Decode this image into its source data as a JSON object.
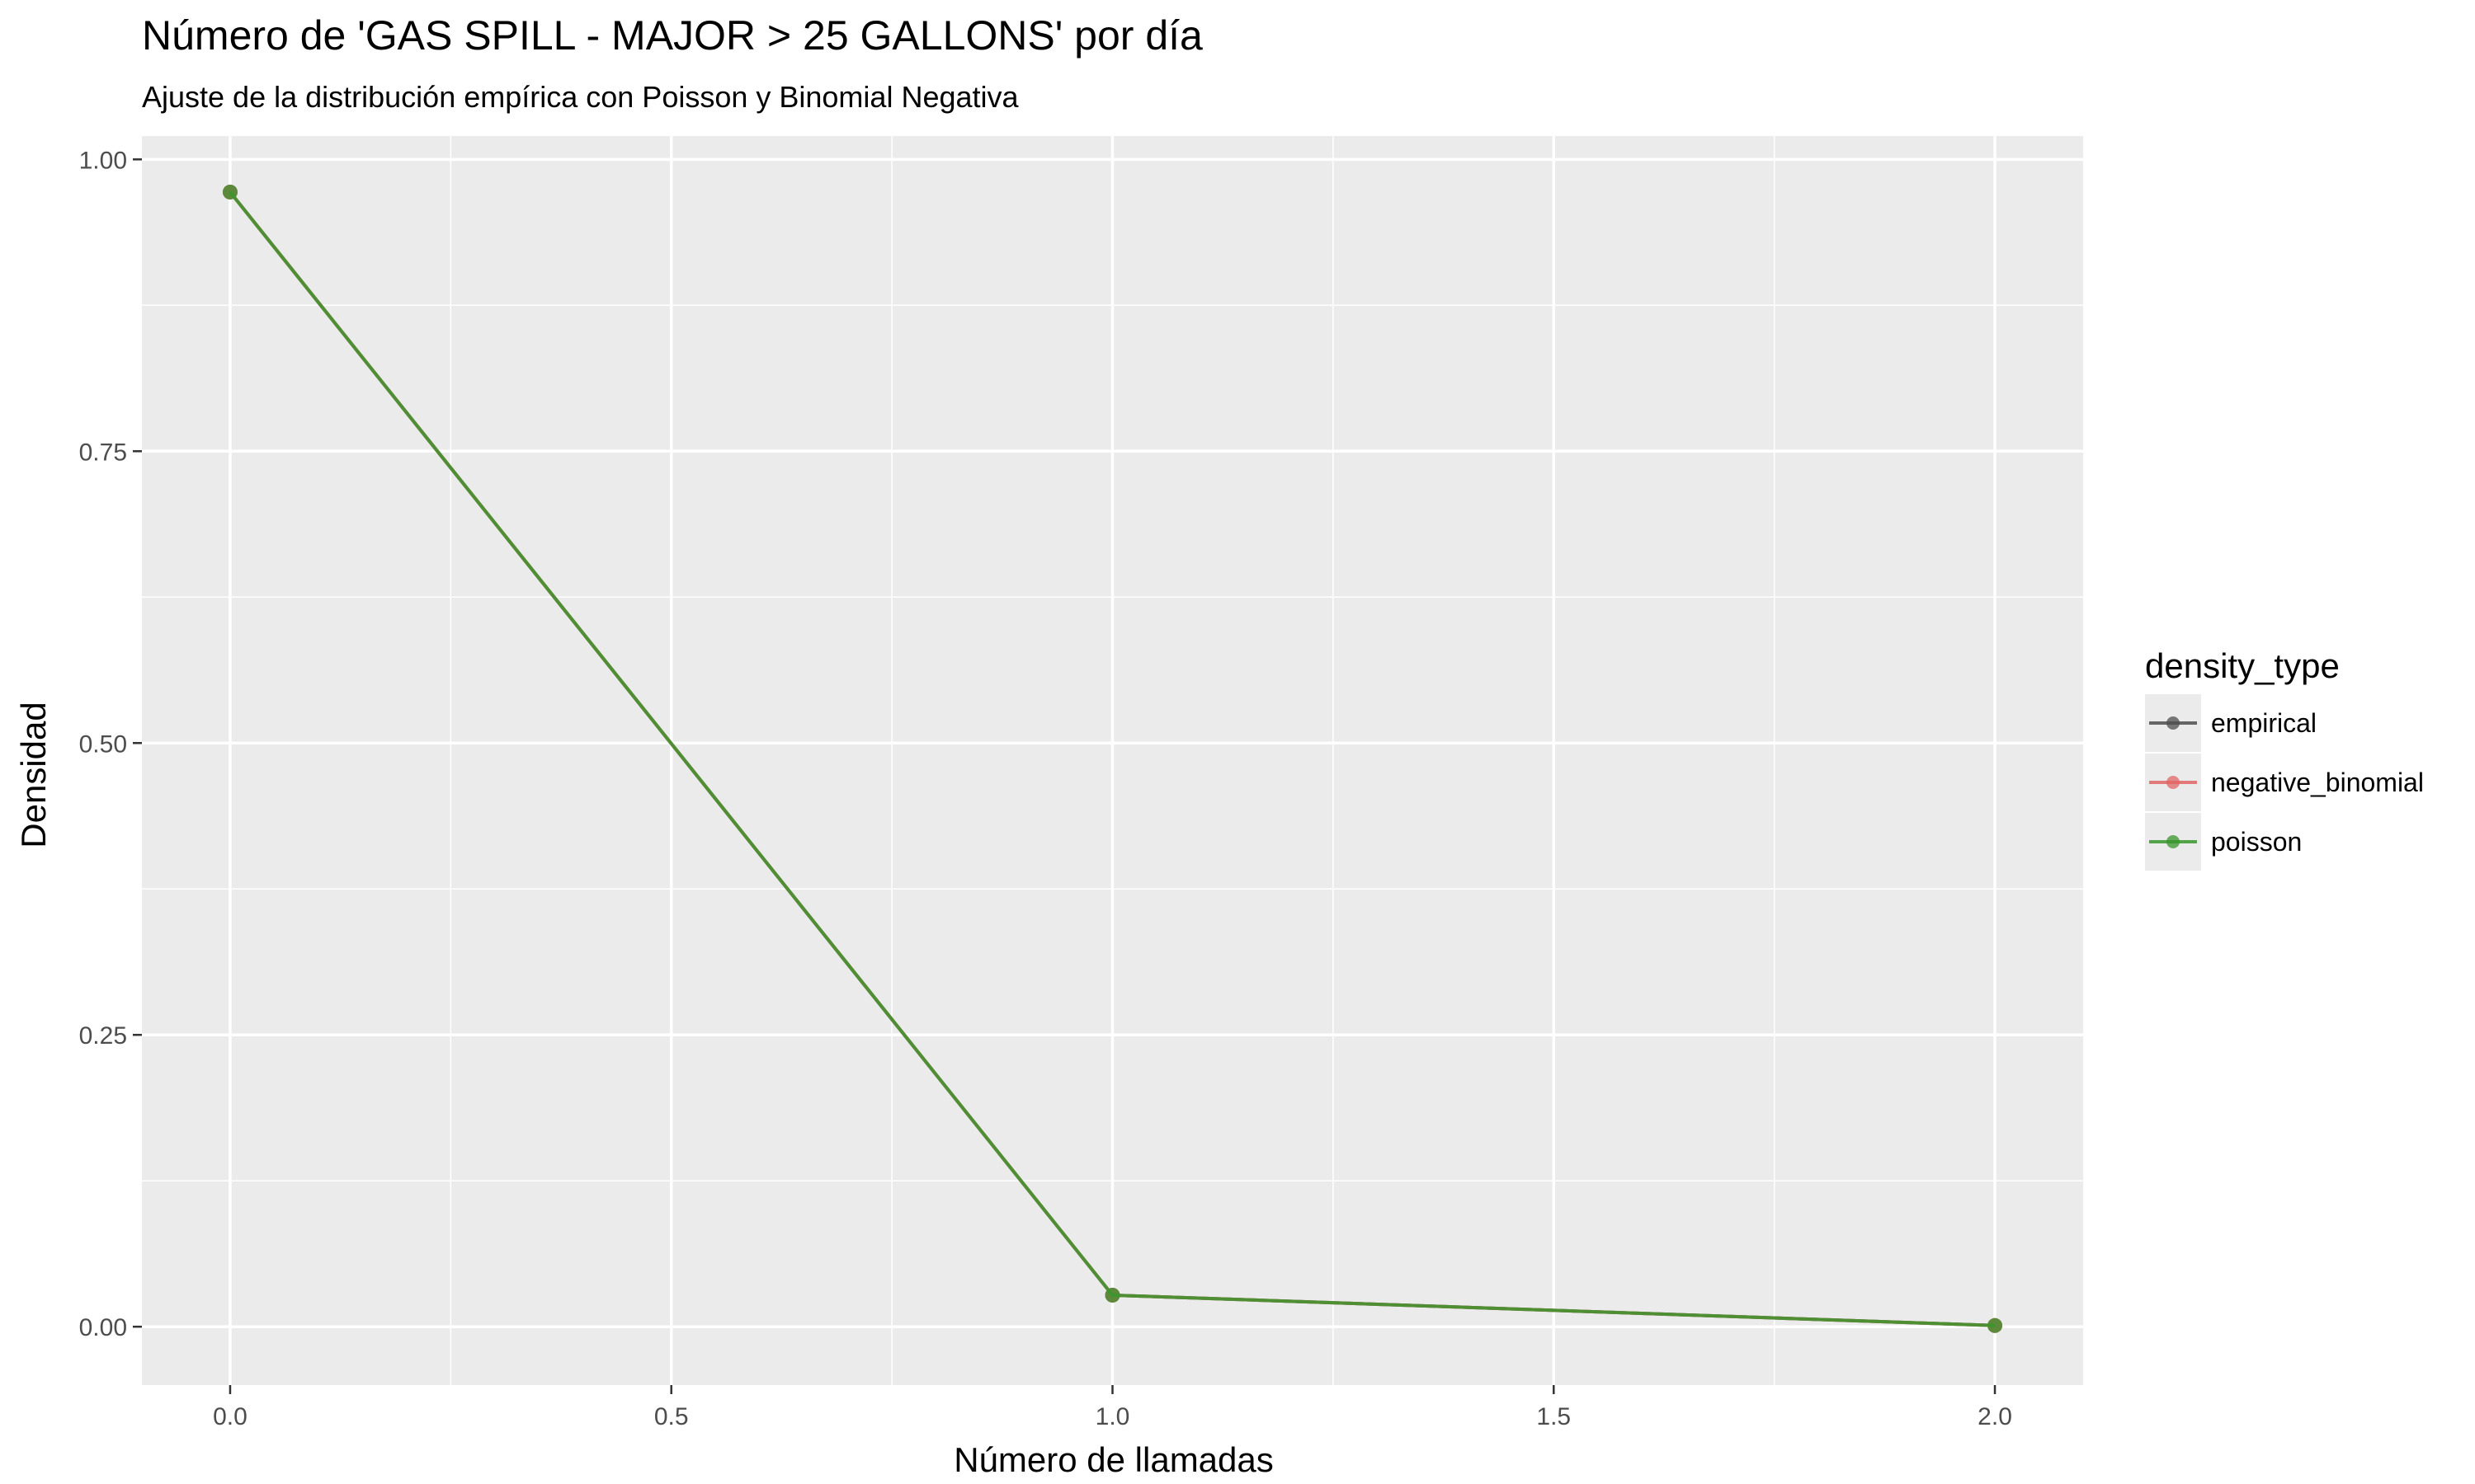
{
  "chart_data": {
    "type": "line",
    "title": "Número de 'GAS SPILL - MAJOR > 25 GALLONS' por día",
    "subtitle": "Ajuste de la distribución empírica con Poisson y Binomial Negativa",
    "xlabel": "Número de llamadas",
    "ylabel": "Densidad",
    "xlim": [
      -0.1,
      2.1
    ],
    "ylim": [
      -0.05,
      1.02
    ],
    "x_ticks": [
      0.0,
      0.5,
      1.0,
      1.5,
      2.0
    ],
    "x_tick_labels": [
      "0.0",
      "0.5",
      "1.0",
      "1.5",
      "2.0"
    ],
    "y_ticks": [
      0.0,
      0.25,
      0.5,
      0.75,
      1.0
    ],
    "y_tick_labels": [
      "0.00",
      "0.25",
      "0.50",
      "0.75",
      "1.00"
    ],
    "grid": true,
    "panel_background": "#ebebeb",
    "legend": {
      "title": "density_type",
      "position": "right"
    },
    "series": [
      {
        "name": "empirical",
        "color": "#4d4d4d",
        "x": [
          0,
          1,
          2
        ],
        "y": [
          0.972,
          0.027,
          0.001
        ]
      },
      {
        "name": "negative_binomial",
        "color": "#e06666",
        "x": [
          0,
          1,
          2
        ],
        "y": [
          0.972,
          0.027,
          0.001
        ]
      },
      {
        "name": "poisson",
        "color": "#38962b",
        "x": [
          0,
          1,
          2
        ],
        "y": [
          0.972,
          0.027,
          0.001
        ]
      }
    ]
  }
}
